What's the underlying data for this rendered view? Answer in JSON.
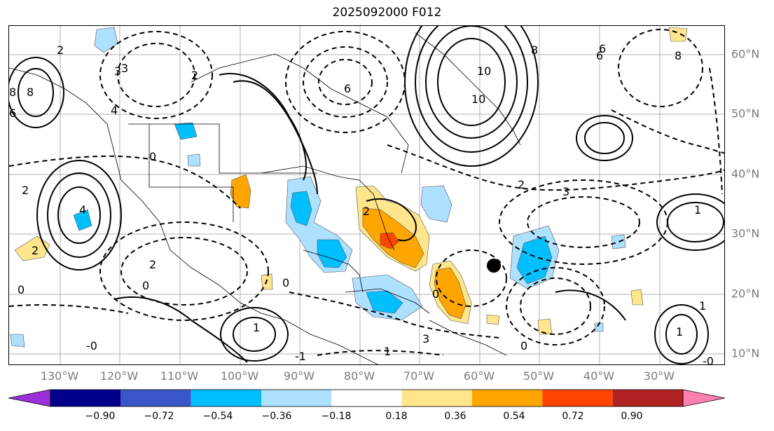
{
  "title": "2025092000 F012",
  "lon_labels": [
    "130°W",
    "120°W",
    "110°W",
    "100°W",
    "90°W",
    "80°W",
    "70°W",
    "60°W",
    "50°W",
    "40°W",
    "30°W"
  ],
  "lat_labels": [
    "60°N",
    "50°N",
    "40°N",
    "30°N",
    "20°N",
    "10°N"
  ],
  "colorbar": {
    "ticks": [
      "−0.90",
      "−0.72",
      "−0.54",
      "−0.36",
      "−0.18",
      "0.18",
      "0.36",
      "0.54",
      "0.72",
      "0.90"
    ],
    "colors": [
      "#9b30d9",
      "#00008b",
      "#3a55c8",
      "#00bfff",
      "#aee0ff",
      "#ffffff",
      "#ffe68c",
      "#ffa500",
      "#ff4500",
      "#b22222",
      "#ff80b0"
    ]
  },
  "contour_labels": [
    "2",
    "3",
    "4",
    "6",
    "8",
    "10",
    "0",
    "-0",
    "1",
    "2",
    "3",
    "4",
    "6",
    "8",
    "0",
    "0",
    "2",
    "1",
    "3",
    "-1",
    "-0",
    "2",
    "1",
    "0",
    "6",
    "8",
    "10",
    "6",
    "8",
    "2",
    "2",
    "3",
    "2",
    "0",
    "1",
    "0",
    "1"
  ]
}
